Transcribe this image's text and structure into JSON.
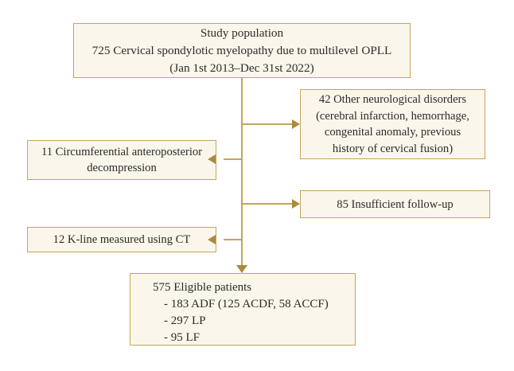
{
  "colors": {
    "box_fill": "#faf6ec",
    "box_border": "#c7a45c",
    "line": "#c7a45c",
    "arrow": "#ab8a3c",
    "text": "#2e2b27",
    "background": "#ffffff"
  },
  "flowchart": {
    "study_population": {
      "lines": [
        "Study population",
        "725 Cervical spondylotic myelopathy due to multilevel OPLL",
        "(Jan 1st 2013–Dec 31st 2022)"
      ]
    },
    "other_neurological_disorders": {
      "lines": [
        "42 Other neurological disorders",
        "(cerebral infarction, hemorrhage,",
        "congenital anomaly, previous",
        "history of cervical fusion)"
      ]
    },
    "circumferential_decompression": {
      "lines": [
        "11 Circumferential anteroposterior",
        "decompression"
      ]
    },
    "insufficient_followup": {
      "lines": [
        "85 Insufficient follow-up"
      ]
    },
    "kline_ct": {
      "lines": [
        "12 K-line measured using CT"
      ]
    },
    "eligible_patients": {
      "title": "575 Eligible patients",
      "items": [
        "- 183 ADF (125 ACDF, 58 ACCF)",
        "- 297 LP",
        "- 95 LF"
      ]
    }
  }
}
